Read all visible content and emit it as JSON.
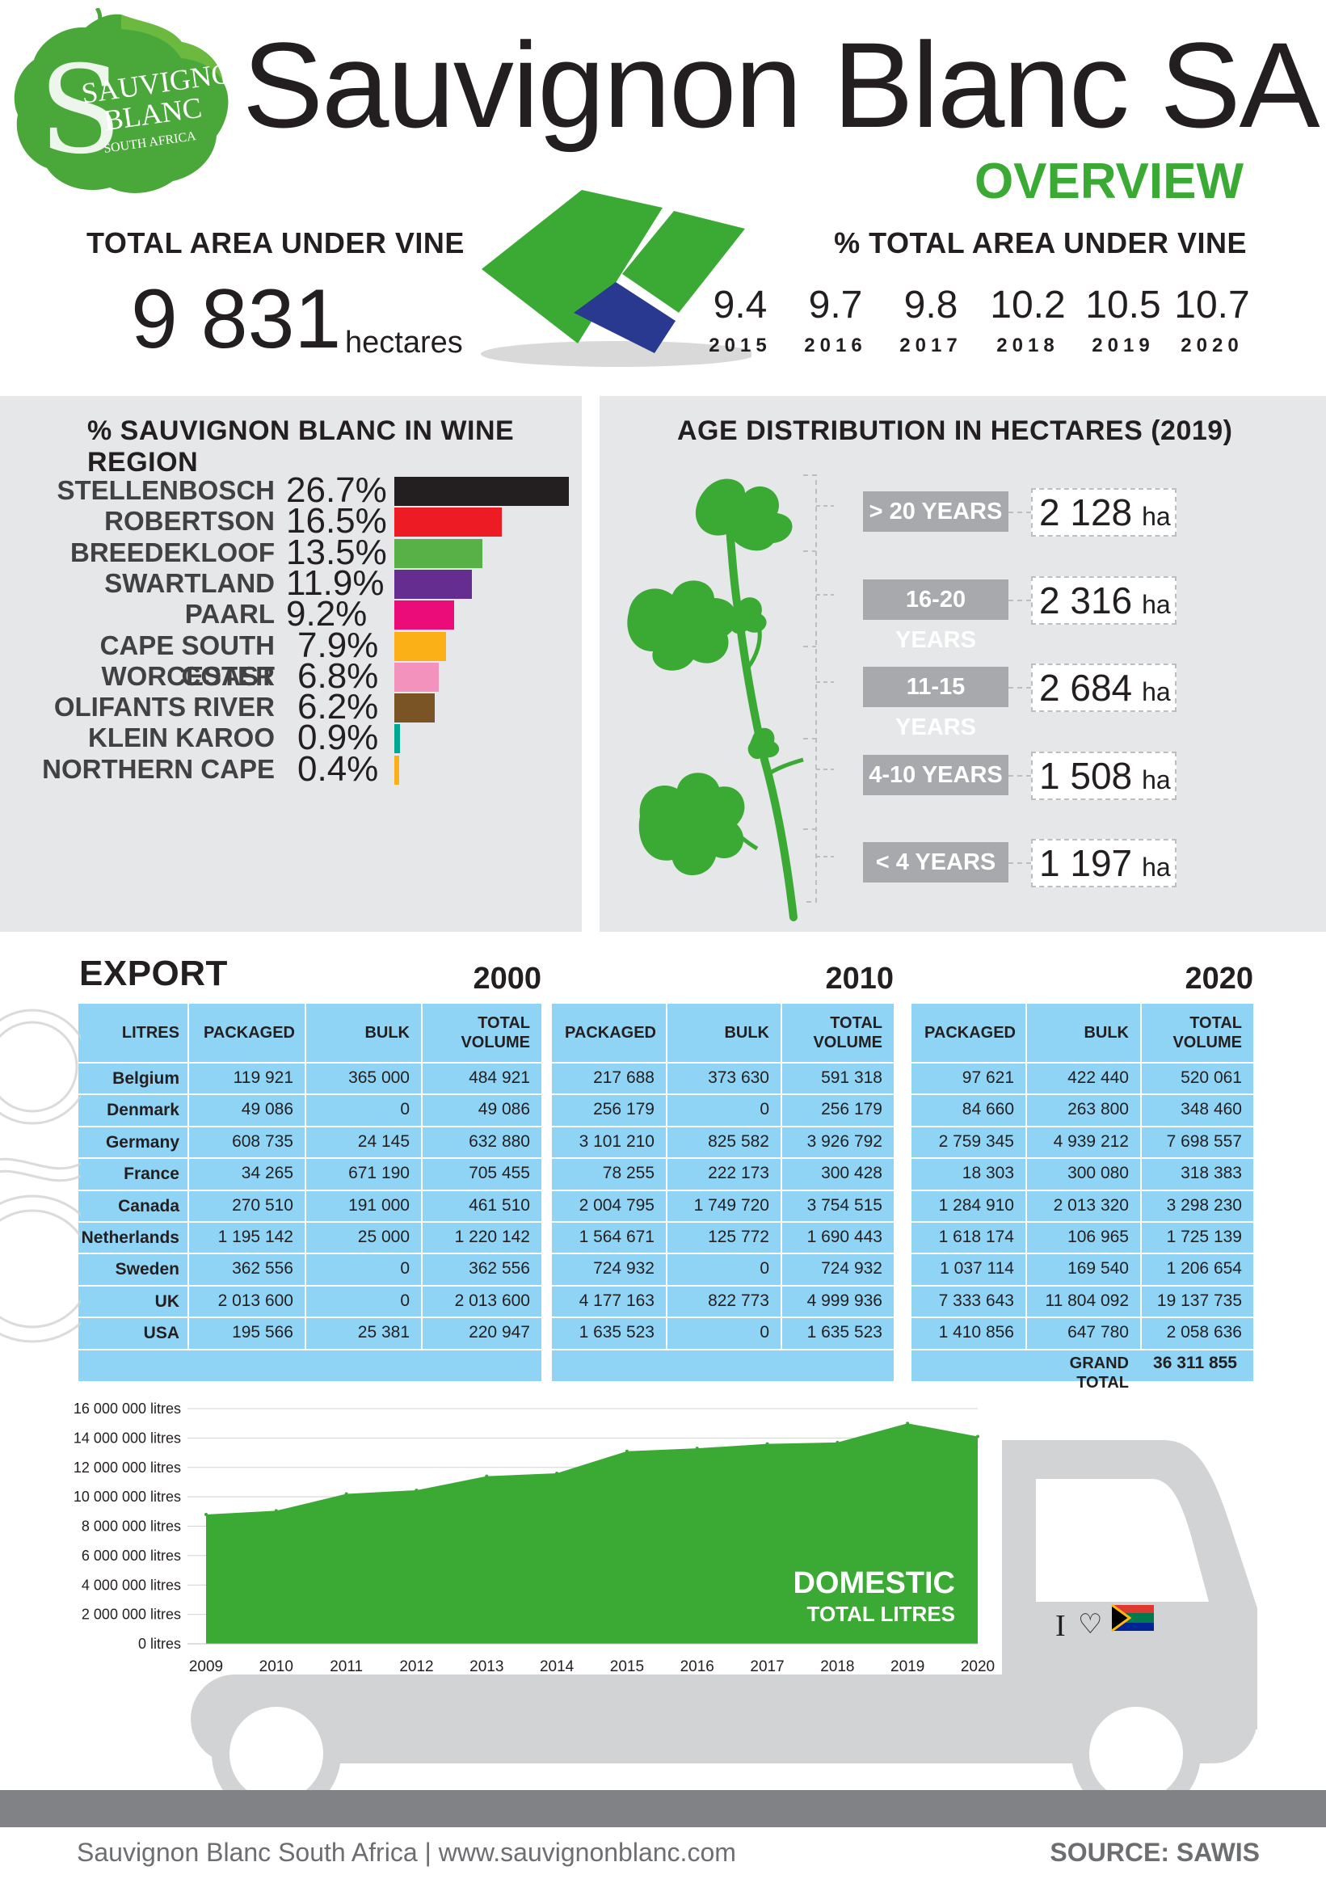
{
  "logo": {
    "line1": "SAUVIGNON",
    "line2": "BLANC",
    "line3": "SOUTH AFRICA"
  },
  "header": {
    "title": "Sauvignon Blanc SA",
    "subtitle": "OVERVIEW"
  },
  "total_area": {
    "heading": "TOTAL AREA UNDER VINE",
    "value": "9 831",
    "unit": "hectares"
  },
  "pct_area": {
    "heading": "% TOTAL AREA UNDER VINE",
    "items": [
      {
        "value": "9.4",
        "year": "2015"
      },
      {
        "value": "9.7",
        "year": "2016"
      },
      {
        "value": "9.8",
        "year": "2017"
      },
      {
        "value": "10.2",
        "year": "2018"
      },
      {
        "value": "10.5",
        "year": "2019"
      },
      {
        "value": "10.7",
        "year": "2020"
      }
    ]
  },
  "regions": {
    "heading": "%  SAUVIGNON BLANC IN WINE REGION",
    "items": [
      {
        "name": "STELLENBOSCH",
        "pct": "26.7%",
        "value": 26.7,
        "color": "#231f20"
      },
      {
        "name": "ROBERTSON",
        "pct": "16.5%",
        "value": 16.5,
        "color": "#ed1c24"
      },
      {
        "name": "BREEDEKLOOF",
        "pct": "13.5%",
        "value": 13.5,
        "color": "#57b146"
      },
      {
        "name": "SWARTLAND",
        "pct": "11.9%",
        "value": 11.9,
        "color": "#662d91"
      },
      {
        "name": "PAARL",
        "pct": "9.2%",
        "value": 9.2,
        "color": "#ec0c79"
      },
      {
        "name": "CAPE SOUTH COAST",
        "pct": "7.9%",
        "value": 7.9,
        "color": "#fbb017"
      },
      {
        "name": "WORCESTER",
        "pct": "6.8%",
        "value": 6.8,
        "color": "#f392bd"
      },
      {
        "name": "OLIFANTS RIVER",
        "pct": "6.2%",
        "value": 6.2,
        "color": "#7b5426"
      },
      {
        "name": "KLEIN KAROO",
        "pct": "0.9%",
        "value": 0.9,
        "color": "#00a88f"
      },
      {
        "name": "NORTHERN CAPE",
        "pct": "0.4%",
        "value": 0.4,
        "color": "#fbb017"
      }
    ]
  },
  "age": {
    "heading": "AGE DISTRIBUTION IN HECTARES (2019)",
    "unit": "ha",
    "items": [
      {
        "label": "> 20 YEARS",
        "value": "2 128"
      },
      {
        "label": "16-20 YEARS",
        "value": "2 316"
      },
      {
        "label": "11-15 YEARS",
        "value": "2 684"
      },
      {
        "label": "4-10 YEARS",
        "value": "1 508"
      },
      {
        "label": "< 4 YEARS",
        "value": "1 197"
      }
    ]
  },
  "export": {
    "heading": "EXPORT",
    "litres_label": "LITRES",
    "col_packaged": "PACKAGED",
    "col_bulk": "BULK",
    "col_total_1": "TOTAL",
    "col_total_2": "VOLUME",
    "countries": [
      "Belgium",
      "Denmark",
      "Germany",
      "France",
      "Canada",
      "Netherlands",
      "Sweden",
      "UK",
      "USA"
    ],
    "years": [
      {
        "year": "2000",
        "rows": [
          [
            "119 921",
            "365 000",
            "484 921"
          ],
          [
            "49 086",
            "0",
            "49 086"
          ],
          [
            "608 735",
            "24 145",
            "632 880"
          ],
          [
            "34 265",
            "671 190",
            "705 455"
          ],
          [
            "270 510",
            "191 000",
            "461 510"
          ],
          [
            "1 195 142",
            "25 000",
            "1 220 142"
          ],
          [
            "362 556",
            "0",
            "362 556"
          ],
          [
            "2 013 600",
            "0",
            "2 013 600"
          ],
          [
            "195 566",
            "25 381",
            "220 947"
          ]
        ]
      },
      {
        "year": "2010",
        "rows": [
          [
            "217 688",
            "373 630",
            "591 318"
          ],
          [
            "256 179",
            "0",
            "256 179"
          ],
          [
            "3 101 210",
            "825 582",
            "3 926 792"
          ],
          [
            "78 255",
            "222 173",
            "300 428"
          ],
          [
            "2 004 795",
            "1 749 720",
            "3 754 515"
          ],
          [
            "1 564 671",
            "125 772",
            "1 690 443"
          ],
          [
            "724 932",
            "0",
            "724 932"
          ],
          [
            "4 177 163",
            "822 773",
            "4 999 936"
          ],
          [
            "1 635 523",
            "0",
            "1 635 523"
          ]
        ]
      },
      {
        "year": "2020",
        "rows": [
          [
            "97 621",
            "422 440",
            "520 061"
          ],
          [
            "84 660",
            "263 800",
            "348 460"
          ],
          [
            "2 759 345",
            "4 939 212",
            "7 698 557"
          ],
          [
            "18 303",
            "300 080",
            "318 383"
          ],
          [
            "1 284 910",
            "2 013 320",
            "3 298 230"
          ],
          [
            "1 618 174",
            "106 965",
            "1 725 139"
          ],
          [
            "1 037 114",
            "169 540",
            "1 206 654"
          ],
          [
            "7 333 643",
            "11 804 092",
            "19 137 735"
          ],
          [
            "1 410 856",
            "647 780",
            "2 058 636"
          ]
        ]
      }
    ],
    "grand_total_label": "GRAND TOTAL",
    "grand_total_value": "36 311 855"
  },
  "truck": {
    "caption": "I",
    "heart": "♡"
  },
  "chart_data": {
    "type": "area",
    "title": "DOMESTIC",
    "subtitle": "TOTAL LITRES",
    "x": [
      "2009",
      "2010",
      "2011",
      "2012",
      "2013",
      "2014",
      "2015",
      "2016",
      "2017",
      "2018",
      "2019",
      "2020"
    ],
    "values": [
      8800000,
      9050000,
      10200000,
      10450000,
      11400000,
      11600000,
      13100000,
      13300000,
      13600000,
      13700000,
      15000000,
      14100000
    ],
    "ylim": [
      0,
      16000000
    ],
    "yticks": [
      "0 litres",
      "2 000 000 litres",
      "4 000 000 litres",
      "6 000 000 litres",
      "8 000 000 litres",
      "10 000 000 litres",
      "12 000 000 litres",
      "14 000 000 litres",
      "16 000 000 litres"
    ],
    "color": "#3aaa35"
  },
  "footer": {
    "left": "Sauvignon Blanc South Africa  |  www.sauvignonblanc.com",
    "right": "SOURCE: SAWIS"
  }
}
